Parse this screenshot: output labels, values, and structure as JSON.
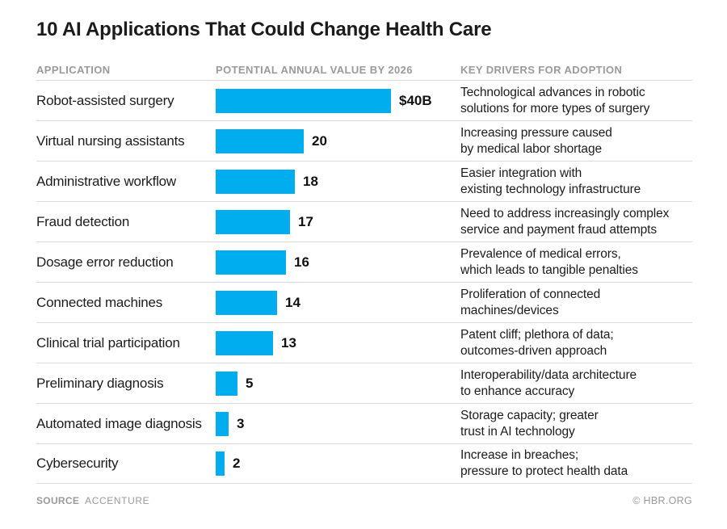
{
  "title": "10 AI Applications That Could Change Health Care",
  "columns": {
    "application": "APPLICATION",
    "value": "POTENTIAL ANNUAL VALUE BY 2026",
    "drivers": "KEY DRIVERS FOR ADOPTION"
  },
  "chart_data": {
    "type": "bar",
    "orientation": "horizontal",
    "title": "10 AI Applications That Could Change Health Care",
    "categories": [
      "Robot-assisted surgery",
      "Virtual nursing assistants",
      "Administrative workflow",
      "Fraud detection",
      "Dosage error reduction",
      "Connected machines",
      "Clinical trial participation",
      "Preliminary diagnosis",
      "Automated image diagnosis",
      "Cybersecurity"
    ],
    "values": [
      40,
      20,
      18,
      17,
      16,
      14,
      13,
      5,
      3,
      2
    ],
    "value_labels": [
      "$40B",
      "20",
      "18",
      "17",
      "16",
      "14",
      "13",
      "5",
      "3",
      "2"
    ],
    "unit": "billions of US dollars per year",
    "xlim": [
      0,
      40
    ],
    "grid": false,
    "legend": false,
    "bar_color": "#00AEEF",
    "annotations": [
      "Technological advances in robotic\nsolutions for more types of surgery",
      "Increasing pressure caused\nby medical labor shortage",
      "Easier integration with\nexisting technology infrastructure",
      "Need to address increasingly complex\nservice and payment fraud attempts",
      "Prevalence of medical errors,\nwhich leads to tangible penalties",
      "Proliferation of connected\nmachines/devices",
      "Patent cliff; plethora of data;\noutcomes-driven approach",
      "Interoperability/data architecture\nto enhance accuracy",
      "Storage capacity; greater\ntrust in AI technology",
      "Increase in breaches;\npressure to protect health data"
    ]
  },
  "rows": [
    {
      "application": "Robot-assisted surgery",
      "value": 40,
      "value_label": "$40B",
      "driver": "Technological advances in robotic\nsolutions for more types of surgery"
    },
    {
      "application": "Virtual nursing assistants",
      "value": 20,
      "value_label": "20",
      "driver": "Increasing pressure caused\nby medical labor shortage"
    },
    {
      "application": "Administrative workflow",
      "value": 18,
      "value_label": "18",
      "driver": "Easier integration with\nexisting technology infrastructure"
    },
    {
      "application": "Fraud detection",
      "value": 17,
      "value_label": "17",
      "driver": "Need to address increasingly complex\nservice and payment fraud attempts"
    },
    {
      "application": "Dosage error reduction",
      "value": 16,
      "value_label": "16",
      "driver": "Prevalence of medical errors,\nwhich leads to tangible penalties"
    },
    {
      "application": "Connected machines",
      "value": 14,
      "value_label": "14",
      "driver": "Proliferation of connected\nmachines/devices"
    },
    {
      "application": "Clinical trial participation",
      "value": 13,
      "value_label": "13",
      "driver": "Patent cliff; plethora of data;\noutcomes-driven approach"
    },
    {
      "application": "Preliminary diagnosis",
      "value": 5,
      "value_label": "5",
      "driver": "Interoperability/data architecture\nto enhance accuracy"
    },
    {
      "application": "Automated image diagnosis",
      "value": 3,
      "value_label": "3",
      "driver": "Storage capacity; greater\ntrust in AI technology"
    },
    {
      "application": "Cybersecurity",
      "value": 2,
      "value_label": "2",
      "driver": "Increase in breaches;\npressure to protect health data"
    }
  ],
  "footer": {
    "source_label": "SOURCE",
    "source_value": "ACCENTURE",
    "credit": "© HBR.ORG"
  },
  "colors": {
    "bar": "#00AEEF",
    "header_text": "#9a9a9a",
    "divider": "#dcdcdc",
    "body_text": "#1c1c1c"
  }
}
